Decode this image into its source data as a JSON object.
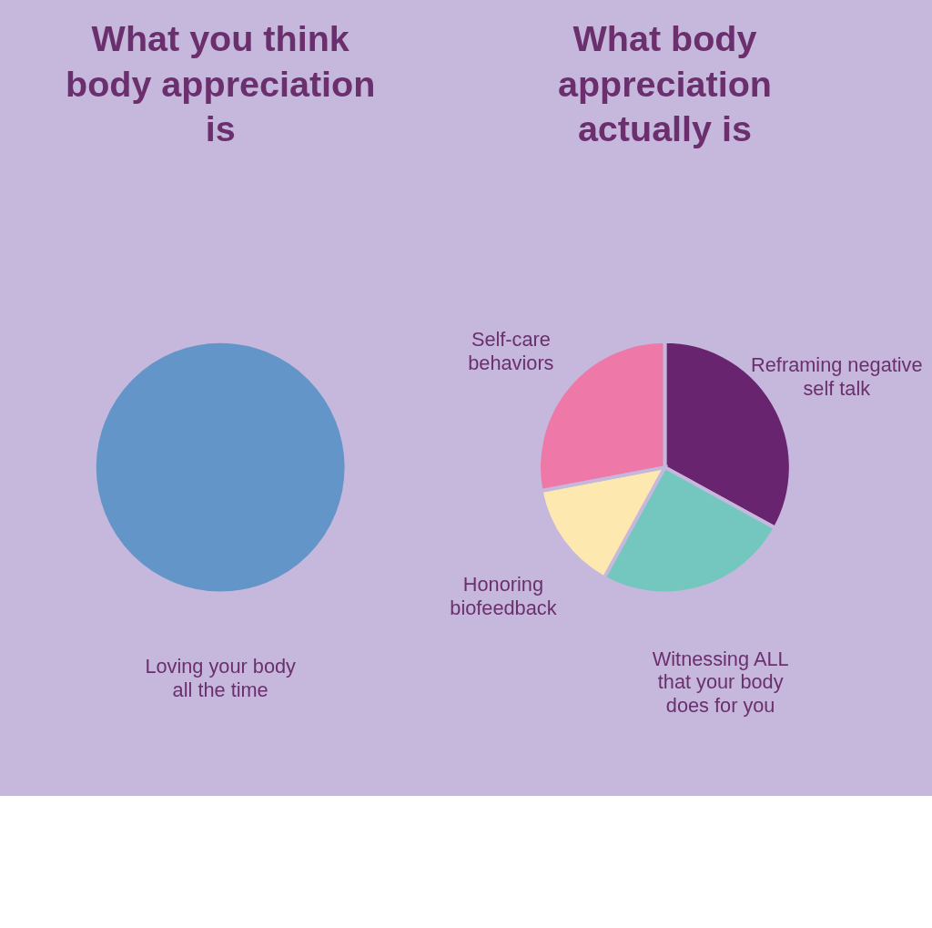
{
  "chart_data": [
    {
      "type": "pie",
      "title": "What you think body appreciation is",
      "categories": [
        "Loving your body all the time"
      ],
      "values": [
        100
      ],
      "colors": [
        "#6395c8"
      ],
      "legend": false
    },
    {
      "type": "pie",
      "title": "What body appreciation actually is",
      "categories": [
        "Reframing negative self talk",
        "Witnessing ALL that your body does for you",
        "Honoring biofeedback",
        "Self-care behaviors"
      ],
      "values": [
        33,
        25,
        14,
        28
      ],
      "colors": [
        "#69246f",
        "#74c7be",
        "#fde9b0",
        "#ee79a8"
      ],
      "legend": false
    }
  ]
}
